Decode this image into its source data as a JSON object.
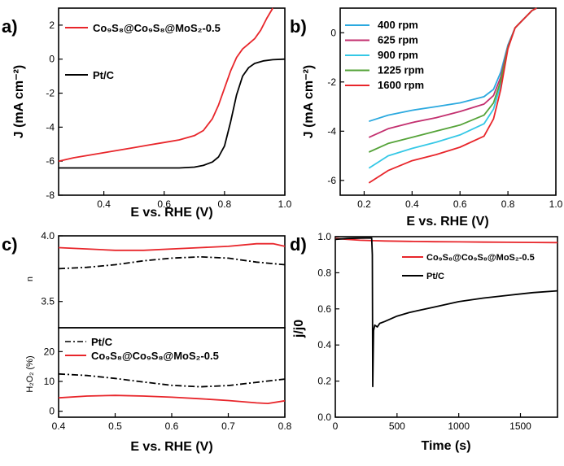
{
  "colors": {
    "red": "#e8262b",
    "black": "#000000",
    "rpm400": "#2ba9df",
    "rpm625": "#c3306f",
    "rpm900": "#35c8e6",
    "rpm1225": "#55a339",
    "rpm1600": "#e8262b"
  },
  "chart_data": [
    {
      "panel": "a)",
      "type": "line",
      "xlabel": "E vs. RHE (V)",
      "ylabel": "J (mA cm⁻²)",
      "xlim": [
        0.25,
        1.0
      ],
      "ylim": [
        -8,
        3
      ],
      "xticks": [
        "0.4",
        "0.6",
        "0.8",
        "1.0"
      ],
      "yticks": [
        "-8",
        "-6",
        "-4",
        "-2",
        "0",
        "2"
      ],
      "legend_position": "top-left",
      "series": [
        {
          "name": "Co₉S₈@Co₉S₈@MoS₂-0.5",
          "color": "red",
          "x": [
            0.25,
            0.3,
            0.35,
            0.4,
            0.45,
            0.5,
            0.55,
            0.6,
            0.65,
            0.7,
            0.73,
            0.76,
            0.78,
            0.8,
            0.82,
            0.84,
            0.86,
            0.88,
            0.9,
            0.92,
            0.94,
            0.96
          ],
          "y": [
            -6.0,
            -5.8,
            -5.65,
            -5.5,
            -5.35,
            -5.2,
            -5.05,
            -4.9,
            -4.75,
            -4.5,
            -4.2,
            -3.5,
            -2.7,
            -1.7,
            -0.7,
            0.1,
            0.6,
            0.9,
            1.2,
            1.7,
            2.4,
            3.0
          ]
        },
        {
          "name": "Pt/C",
          "color": "black",
          "x": [
            0.25,
            0.3,
            0.4,
            0.5,
            0.6,
            0.65,
            0.7,
            0.73,
            0.76,
            0.78,
            0.8,
            0.82,
            0.84,
            0.86,
            0.88,
            0.9,
            0.93,
            0.96,
            1.0
          ],
          "y": [
            -6.4,
            -6.4,
            -6.4,
            -6.4,
            -6.4,
            -6.4,
            -6.35,
            -6.25,
            -6.05,
            -5.75,
            -5.1,
            -3.7,
            -2.1,
            -1.0,
            -0.5,
            -0.25,
            -0.1,
            -0.03,
            0.0
          ]
        }
      ]
    },
    {
      "panel": "b)",
      "type": "line",
      "xlabel": "E vs. RHE (V)",
      "ylabel": "J (mA cm⁻²)",
      "xlim": [
        0.1,
        1.0
      ],
      "ylim": [
        -6.6,
        1.0
      ],
      "xticks": [
        "0.2",
        "0.4",
        "0.6",
        "0.8",
        "1.0"
      ],
      "yticks": [
        "-6",
        "-4",
        "-2",
        "0"
      ],
      "legend_position": "top-left",
      "series": [
        {
          "name": "400 rpm",
          "color": "rpm400",
          "x": [
            0.22,
            0.3,
            0.4,
            0.5,
            0.6,
            0.7,
            0.74,
            0.77,
            0.8,
            0.83,
            0.86,
            0.88,
            0.9,
            0.92
          ],
          "y": [
            -3.6,
            -3.35,
            -3.15,
            -3.0,
            -2.85,
            -2.6,
            -2.3,
            -1.6,
            -0.5,
            0.2,
            0.5,
            0.7,
            0.9,
            1.0
          ]
        },
        {
          "name": "625 rpm",
          "color": "rpm625",
          "x": [
            0.22,
            0.3,
            0.4,
            0.5,
            0.6,
            0.7,
            0.74,
            0.77,
            0.8,
            0.83,
            0.86,
            0.88,
            0.9,
            0.92
          ],
          "y": [
            -4.25,
            -3.9,
            -3.65,
            -3.45,
            -3.2,
            -2.9,
            -2.55,
            -1.8,
            -0.55,
            0.2,
            0.5,
            0.7,
            0.9,
            1.0
          ]
        },
        {
          "name": "900 rpm",
          "color": "rpm900",
          "x": [
            0.22,
            0.3,
            0.4,
            0.5,
            0.6,
            0.7,
            0.74,
            0.77,
            0.8,
            0.83,
            0.86,
            0.88,
            0.9,
            0.92
          ],
          "y": [
            -5.5,
            -5.0,
            -4.7,
            -4.45,
            -4.15,
            -3.7,
            -3.1,
            -2.1,
            -0.6,
            0.2,
            0.5,
            0.7,
            0.9,
            1.0
          ]
        },
        {
          "name": "1225 rpm",
          "color": "rpm1225",
          "x": [
            0.22,
            0.3,
            0.4,
            0.5,
            0.6,
            0.7,
            0.74,
            0.77,
            0.8,
            0.83,
            0.86,
            0.88,
            0.9,
            0.92
          ],
          "y": [
            -4.85,
            -4.5,
            -4.25,
            -4.0,
            -3.75,
            -3.35,
            -2.85,
            -1.95,
            -0.6,
            0.2,
            0.5,
            0.7,
            0.9,
            1.0
          ]
        },
        {
          "name": "1600 rpm",
          "color": "rpm1600",
          "x": [
            0.22,
            0.3,
            0.4,
            0.5,
            0.6,
            0.7,
            0.74,
            0.77,
            0.8,
            0.83,
            0.86,
            0.88,
            0.9,
            0.92
          ],
          "y": [
            -6.1,
            -5.6,
            -5.2,
            -4.95,
            -4.65,
            -4.2,
            -3.5,
            -2.3,
            -0.65,
            0.2,
            0.5,
            0.7,
            0.9,
            1.0
          ]
        }
      ]
    },
    {
      "panel": "c)",
      "type": "line",
      "subplot": "top",
      "ylabel": "n",
      "xlim": [
        0.4,
        0.8
      ],
      "ylim": [
        3.3,
        4.0
      ],
      "yticks": [
        "3.5",
        "4.0"
      ],
      "series": [
        {
          "name": "Co₉S₈@Co₉S₈@MoS₂-0.5",
          "color": "red",
          "x": [
            0.4,
            0.45,
            0.5,
            0.55,
            0.6,
            0.65,
            0.7,
            0.75,
            0.78,
            0.8
          ],
          "y": [
            3.91,
            3.9,
            3.89,
            3.89,
            3.9,
            3.91,
            3.92,
            3.94,
            3.94,
            3.92
          ]
        },
        {
          "name": "Pt/C",
          "color": "black",
          "dash": "dashdot",
          "x": [
            0.4,
            0.45,
            0.5,
            0.55,
            0.6,
            0.65,
            0.7,
            0.75,
            0.8
          ],
          "y": [
            3.75,
            3.76,
            3.78,
            3.81,
            3.83,
            3.84,
            3.83,
            3.8,
            3.78
          ]
        }
      ]
    },
    {
      "panel": "",
      "type": "line",
      "subplot": "bottom",
      "xlabel": "E vs. RHE (V)",
      "ylabel": "H₂O₂ (%)",
      "xlim": [
        0.4,
        0.8
      ],
      "ylim": [
        -2,
        28
      ],
      "xticks": [
        "0.4",
        "0.5",
        "0.6",
        "0.7",
        "0.8"
      ],
      "yticks": [
        "0",
        "10",
        "20"
      ],
      "legend_position": "top-left",
      "series": [
        {
          "name": "Pt/C",
          "color": "black",
          "dash": "dashdot",
          "x": [
            0.4,
            0.45,
            0.5,
            0.55,
            0.6,
            0.65,
            0.7,
            0.75,
            0.8
          ],
          "y": [
            12.5,
            12.0,
            11.0,
            9.8,
            8.7,
            8.2,
            8.6,
            9.7,
            10.8
          ]
        },
        {
          "name": "Co₉S₈@Co₉S₈@MoS₂-0.5",
          "color": "red",
          "x": [
            0.4,
            0.45,
            0.5,
            0.55,
            0.6,
            0.65,
            0.7,
            0.75,
            0.77,
            0.8
          ],
          "y": [
            4.5,
            5.1,
            5.3,
            5.1,
            4.7,
            4.2,
            3.6,
            2.8,
            2.6,
            3.5
          ]
        }
      ]
    },
    {
      "panel": "d)",
      "type": "line",
      "xlabel": "Time (s)",
      "ylabel": "j/j0",
      "xlim": [
        0,
        1800
      ],
      "ylim": [
        0,
        1.0
      ],
      "xticks": [
        "0",
        "500",
        "1000",
        "1500"
      ],
      "yticks": [
        "0.0",
        "0.2",
        "0.4",
        "0.6",
        "0.8",
        "1.0"
      ],
      "legend_position": "top-right",
      "series": [
        {
          "name": "Co₉S₈@Co₉S₈@MoS₂-0.5",
          "color": "red",
          "x": [
            0,
            100,
            200,
            300,
            400,
            600,
            800,
            1000,
            1200,
            1400,
            1600,
            1800
          ],
          "y": [
            0.99,
            0.985,
            0.98,
            0.978,
            0.976,
            0.974,
            0.972,
            0.971,
            0.97,
            0.969,
            0.968,
            0.967
          ]
        },
        {
          "name": "Pt/C",
          "color": "black",
          "x": [
            0,
            100,
            200,
            295,
            300,
            303,
            306,
            310,
            320,
            340,
            360,
            400,
            500,
            600,
            800,
            1000,
            1200,
            1400,
            1600,
            1800
          ],
          "y": [
            0.985,
            0.99,
            0.992,
            0.993,
            0.9,
            0.17,
            0.3,
            0.48,
            0.51,
            0.5,
            0.52,
            0.53,
            0.56,
            0.58,
            0.61,
            0.64,
            0.66,
            0.675,
            0.69,
            0.7
          ]
        }
      ]
    }
  ]
}
